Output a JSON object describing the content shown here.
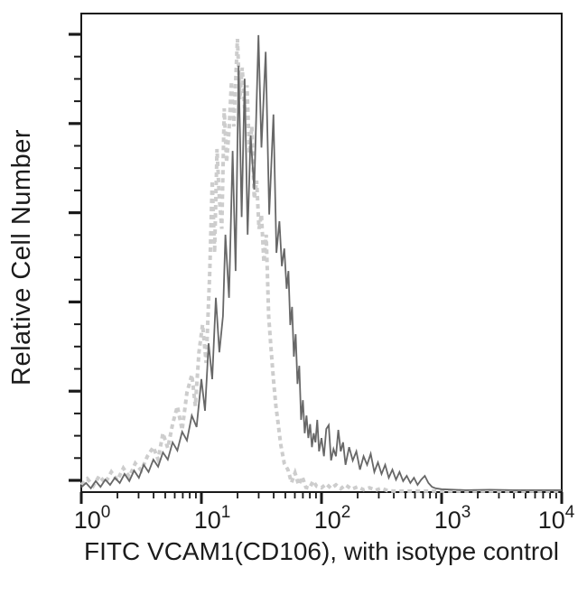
{
  "chart_data": {
    "type": "line",
    "subtype": "flow-cytometry-histogram-overlay",
    "title": "",
    "xlabel": "FITC VCAM1(CD106), with isotype control",
    "ylabel": "Relative Cell Number",
    "x_scale": "log10",
    "x_range": [
      1,
      10000
    ],
    "y_range_note": "unlabeled relative scale, heights in % of axis height",
    "grid": false,
    "legend": "none",
    "x_ticks": [
      {
        "base": "10",
        "exponent": "0",
        "log_value": 0
      },
      {
        "base": "10",
        "exponent": "1",
        "log_value": 1
      },
      {
        "base": "10",
        "exponent": "2",
        "log_value": 2
      },
      {
        "base": "10",
        "exponent": "3",
        "log_value": 3
      },
      {
        "base": "10",
        "exponent": "4",
        "log_value": 4
      }
    ],
    "x_minor_ticks_per_decade": [
      2,
      3,
      4,
      5,
      6,
      7,
      8,
      9
    ],
    "y_major_tick_count": 6,
    "y_minor_ticks_per_major": 3,
    "axis_color": "#1a1a1a",
    "series": [
      {
        "name": "Isotype control",
        "line_style": "dashed",
        "color": "#cdcdcd",
        "stroke_width": 4,
        "points_logx_heightpct": [
          [
            0.0,
            1.5
          ],
          [
            0.05,
            2.8
          ],
          [
            0.1,
            1.3
          ],
          [
            0.15,
            3.4
          ],
          [
            0.2,
            1.9
          ],
          [
            0.25,
            4.2
          ],
          [
            0.3,
            2.5
          ],
          [
            0.35,
            5.0
          ],
          [
            0.4,
            3.2
          ],
          [
            0.45,
            6.0
          ],
          [
            0.5,
            4.5
          ],
          [
            0.55,
            7.5
          ],
          [
            0.6,
            9.4
          ],
          [
            0.64,
            6.8
          ],
          [
            0.68,
            12.3
          ],
          [
            0.72,
            9.2
          ],
          [
            0.76,
            14.2
          ],
          [
            0.8,
            17.9
          ],
          [
            0.84,
            13.0
          ],
          [
            0.88,
            20.8
          ],
          [
            0.92,
            24.5
          ],
          [
            0.95,
            18.0
          ],
          [
            0.98,
            29.2
          ],
          [
            1.01,
            35.0
          ],
          [
            1.04,
            27.0
          ],
          [
            1.07,
            46.2
          ],
          [
            1.09,
            65.1
          ],
          [
            1.11,
            50.0
          ],
          [
            1.13,
            71.7
          ],
          [
            1.15,
            61.3
          ],
          [
            1.17,
            55.0
          ],
          [
            1.19,
            80.2
          ],
          [
            1.21,
            68.9
          ],
          [
            1.23,
            75.5
          ],
          [
            1.25,
            85.8
          ],
          [
            1.27,
            76.4
          ],
          [
            1.3,
            94.7
          ],
          [
            1.32,
            82.1
          ],
          [
            1.34,
            88.7
          ],
          [
            1.36,
            80.2
          ],
          [
            1.38,
            85.0
          ],
          [
            1.4,
            70.8
          ],
          [
            1.42,
            76.4
          ],
          [
            1.44,
            61.3
          ],
          [
            1.46,
            65.1
          ],
          [
            1.48,
            55.0
          ],
          [
            1.5,
            58.0
          ],
          [
            1.52,
            48.0
          ],
          [
            1.54,
            53.8
          ],
          [
            1.56,
            36.8
          ],
          [
            1.58,
            30.0
          ],
          [
            1.6,
            23.5
          ],
          [
            1.62,
            18.0
          ],
          [
            1.64,
            14.2
          ],
          [
            1.66,
            10.0
          ],
          [
            1.69,
            6.0
          ],
          [
            1.72,
            4.7
          ],
          [
            1.75,
            2.0
          ],
          [
            1.78,
            4.0
          ],
          [
            1.81,
            1.5
          ],
          [
            1.84,
            3.2
          ],
          [
            1.87,
            1.0
          ],
          [
            1.9,
            0.8
          ],
          [
            1.93,
            2.3
          ],
          [
            1.96,
            1.2
          ],
          [
            2.0,
            0.9
          ],
          [
            2.04,
            1.7
          ],
          [
            2.08,
            0.8
          ],
          [
            2.12,
            1.5
          ],
          [
            2.16,
            0.7
          ],
          [
            2.2,
            1.5
          ],
          [
            2.25,
            0.6
          ],
          [
            2.3,
            1.1
          ],
          [
            2.35,
            0.5
          ],
          [
            2.4,
            0.9
          ],
          [
            2.45,
            0.4
          ],
          [
            2.5,
            0.8
          ],
          [
            2.55,
            0.3
          ],
          [
            2.6,
            0.2
          ],
          [
            2.8,
            0.2
          ],
          [
            3.0,
            0.2
          ],
          [
            3.5,
            0.2
          ],
          [
            4.0,
            0.2
          ]
        ]
      },
      {
        "name": "FITC VCAM1(CD106)",
        "line_style": "solid",
        "color": "#676767",
        "stroke_width": 1.8,
        "points_logx_heightpct": [
          [
            0.0,
            1.0
          ],
          [
            0.04,
            1.9
          ],
          [
            0.08,
            0.8
          ],
          [
            0.12,
            2.3
          ],
          [
            0.16,
            1.1
          ],
          [
            0.2,
            2.6
          ],
          [
            0.24,
            1.5
          ],
          [
            0.28,
            3.0
          ],
          [
            0.32,
            1.9
          ],
          [
            0.36,
            3.8
          ],
          [
            0.4,
            2.3
          ],
          [
            0.44,
            4.5
          ],
          [
            0.48,
            3.0
          ],
          [
            0.52,
            5.7
          ],
          [
            0.56,
            4.2
          ],
          [
            0.6,
            6.8
          ],
          [
            0.64,
            5.3
          ],
          [
            0.68,
            8.3
          ],
          [
            0.72,
            6.8
          ],
          [
            0.76,
            10.4
          ],
          [
            0.8,
            8.7
          ],
          [
            0.84,
            12.6
          ],
          [
            0.88,
            10.8
          ],
          [
            0.92,
            16.0
          ],
          [
            0.96,
            13.6
          ],
          [
            1.0,
            23.6
          ],
          [
            1.03,
            17.0
          ],
          [
            1.06,
            31.1
          ],
          [
            1.09,
            23.6
          ],
          [
            1.12,
            40.6
          ],
          [
            1.15,
            29.2
          ],
          [
            1.18,
            36.8
          ],
          [
            1.2,
            53.8
          ],
          [
            1.23,
            40.6
          ],
          [
            1.26,
            71.3
          ],
          [
            1.285,
            46.2
          ],
          [
            1.31,
            89.1
          ],
          [
            1.335,
            57.5
          ],
          [
            1.36,
            86.4
          ],
          [
            1.385,
            53.8
          ],
          [
            1.41,
            74.5
          ],
          [
            1.44,
            63.2
          ],
          [
            1.475,
            95.5
          ],
          [
            1.5,
            72.0
          ],
          [
            1.535,
            92.0
          ],
          [
            1.565,
            58.0
          ],
          [
            1.6,
            78.9
          ],
          [
            1.625,
            50.0
          ],
          [
            1.65,
            56.6
          ],
          [
            1.67,
            47.2
          ],
          [
            1.69,
            50.9
          ],
          [
            1.71,
            42.5
          ],
          [
            1.725,
            46.2
          ],
          [
            1.74,
            34.9
          ],
          [
            1.755,
            38.7
          ],
          [
            1.77,
            28.3
          ],
          [
            1.785,
            33.0
          ],
          [
            1.8,
            22.6
          ],
          [
            1.815,
            26.4
          ],
          [
            1.83,
            15.1
          ],
          [
            1.845,
            19.2
          ],
          [
            1.86,
            12.3
          ],
          [
            1.875,
            16.0
          ],
          [
            1.89,
            11.3
          ],
          [
            1.905,
            14.2
          ],
          [
            1.92,
            9.4
          ],
          [
            1.935,
            12.3
          ],
          [
            1.95,
            10.4
          ],
          [
            1.965,
            15.1
          ],
          [
            1.98,
            8.5
          ],
          [
            2.0,
            11.3
          ],
          [
            2.02,
            7.5
          ],
          [
            2.04,
            13.2
          ],
          [
            2.06,
            14.0
          ],
          [
            2.08,
            6.6
          ],
          [
            2.1,
            9.0
          ],
          [
            2.12,
            7.5
          ],
          [
            2.14,
            13.0
          ],
          [
            2.16,
            8.5
          ],
          [
            2.18,
            10.4
          ],
          [
            2.2,
            5.7
          ],
          [
            2.23,
            9.4
          ],
          [
            2.26,
            6.6
          ],
          [
            2.29,
            8.5
          ],
          [
            2.32,
            4.7
          ],
          [
            2.35,
            7.5
          ],
          [
            2.38,
            5.7
          ],
          [
            2.41,
            8.0
          ],
          [
            2.44,
            4.2
          ],
          [
            2.47,
            6.2
          ],
          [
            2.5,
            3.8
          ],
          [
            2.53,
            5.7
          ],
          [
            2.56,
            3.0
          ],
          [
            2.59,
            4.7
          ],
          [
            2.62,
            2.6
          ],
          [
            2.65,
            4.2
          ],
          [
            2.68,
            2.3
          ],
          [
            2.71,
            3.4
          ],
          [
            2.74,
            1.9
          ],
          [
            2.77,
            3.0
          ],
          [
            2.8,
            1.5
          ],
          [
            2.83,
            2.6
          ],
          [
            2.86,
            3.4
          ],
          [
            2.89,
            1.9
          ],
          [
            2.92,
            1.1
          ],
          [
            2.95,
            0.8
          ],
          [
            3.0,
            0.6
          ],
          [
            3.2,
            0.4
          ],
          [
            3.4,
            0.5
          ],
          [
            3.6,
            0.4
          ],
          [
            3.8,
            0.4
          ],
          [
            4.0,
            0.4
          ]
        ]
      }
    ]
  }
}
